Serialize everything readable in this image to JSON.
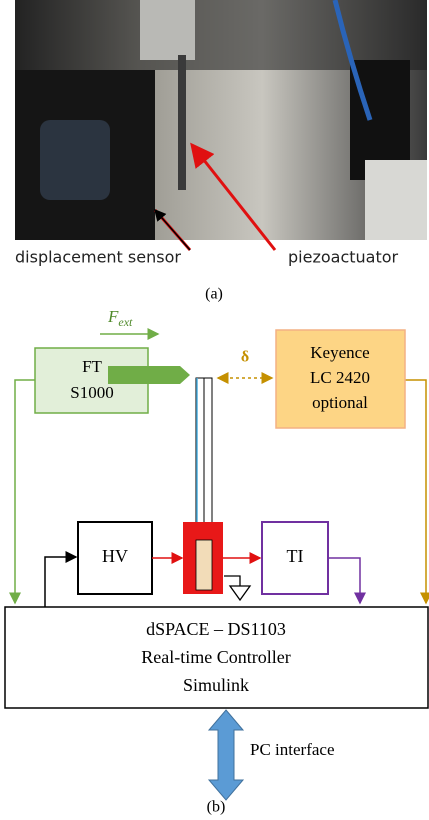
{
  "photo": {
    "labels": [
      "displacement sensor",
      "piezoactuator"
    ],
    "caption": "(a)"
  },
  "diagram": {
    "force": {
      "symbol": "F",
      "subscript": "ext"
    },
    "gap": "δ",
    "ft_sensor": [
      "FT",
      "S1000"
    ],
    "keyence": [
      "Keyence",
      "LC 2420",
      "optional"
    ],
    "amplifier": "HV",
    "interface": "TI",
    "controller": [
      "dSPACE – DS1103",
      "Real-time Controller",
      "Simulink"
    ],
    "pc": "PC interface",
    "caption": "(b)"
  }
}
